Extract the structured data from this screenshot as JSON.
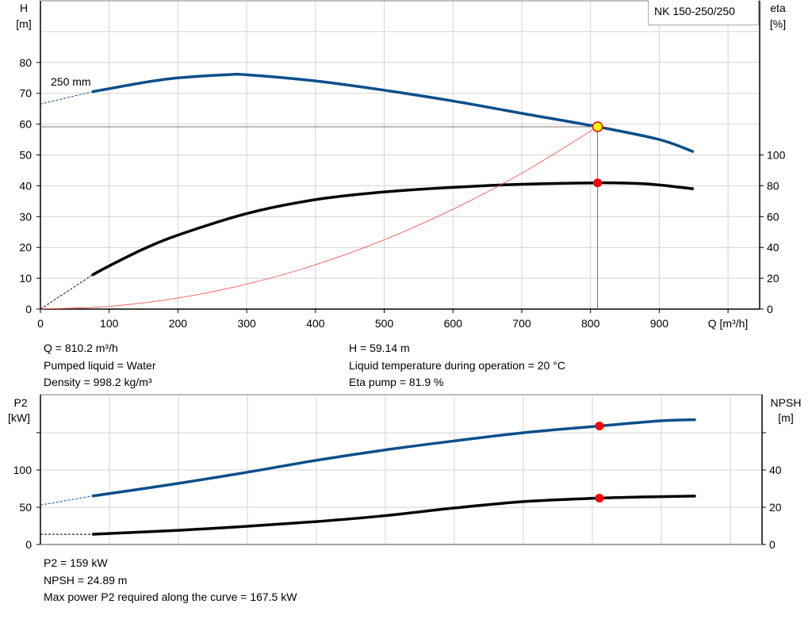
{
  "colors": {
    "head": "#0b4f8a",
    "eta": "#000000",
    "system": "#ff4040",
    "point_fill_head": "#ffff00",
    "point_marker": "#ff0000",
    "grid": "#d4d4d4"
  },
  "chart_data": [
    {
      "type": "line",
      "title": "NK 150-250/250",
      "xlabel": "Q [m³/h]",
      "ylabel": "H [m]",
      "ylabel_top": "H",
      "ylabel_unit": "[m]",
      "y2label_top": "eta",
      "y2label_unit": "[%]",
      "xlim": [
        0,
        1046
      ],
      "ylim": [
        0,
        100
      ],
      "y2lim": [
        0,
        200
      ],
      "grid": true,
      "legend": "top-right",
      "x_ticks": [
        0,
        100,
        200,
        300,
        400,
        500,
        600,
        700,
        800,
        900
      ],
      "y_ticks": [
        0,
        10,
        20,
        30,
        40,
        50,
        60,
        70,
        80
      ],
      "y2_ticks": [
        0,
        20,
        40,
        60,
        80,
        100
      ],
      "curve_label": "250 mm",
      "series": [
        {
          "key": "head",
          "axis": "y",
          "color": "#0b4f8a",
          "x": [
            75,
            100,
            150,
            200,
            270,
            300,
            400,
            500,
            600,
            700,
            810.2,
            900,
            950
          ],
          "values": [
            70.5,
            71.5,
            73.5,
            75,
            76,
            76,
            74,
            71,
            67.5,
            63.5,
            59.14,
            55,
            51
          ],
          "extrapolated": {
            "x": [
              0,
              75
            ],
            "values": [
              66.5,
              70.5
            ]
          }
        },
        {
          "key": "eta",
          "axis": "y2",
          "color": "#000000",
          "x": [
            75,
            100,
            150,
            200,
            300,
            400,
            500,
            600,
            700,
            810.2,
            870,
            900,
            950
          ],
          "values": [
            22,
            28,
            39,
            48,
            62,
            71,
            76,
            79,
            81,
            81.9,
            81.5,
            80.5,
            78
          ],
          "extrapolated": {
            "x": [
              0,
              75
            ],
            "values": [
              0,
              22
            ]
          }
        },
        {
          "key": "system",
          "axis": "y",
          "color": "#ff4040",
          "x": [
            0,
            100,
            200,
            300,
            400,
            500,
            600,
            700,
            810.2
          ],
          "values": [
            0,
            0.9,
            3.6,
            8.1,
            14.4,
            22.5,
            32.4,
            44.1,
            59.14
          ]
        }
      ],
      "duty_point": {
        "Q": 810.2,
        "H": 59.14,
        "eta": 81.9
      }
    },
    {
      "type": "line",
      "ylabel_top": "P2",
      "ylabel_unit": "[kW]",
      "y2label_top": "NPSH",
      "y2label_unit": "[m]",
      "xlim": [
        0,
        1046
      ],
      "ylim": [
        0,
        201
      ],
      "y2lim": [
        0,
        80.4
      ],
      "grid": true,
      "y_ticks": [
        0,
        50,
        100,
        150
      ],
      "y_tick_labels": [
        "0",
        "50",
        "100",
        ""
      ],
      "y2_ticks": [
        0,
        20,
        40,
        60
      ],
      "y2_tick_labels": [
        "0",
        "20",
        "40",
        ""
      ],
      "series": [
        {
          "key": "p2",
          "axis": "y",
          "color": "#0b4f8a",
          "x": [
            75,
            200,
            300,
            400,
            500,
            600,
            700,
            810.2,
            900,
            950
          ],
          "values": [
            65,
            82,
            97,
            113,
            127,
            139,
            150,
            159,
            166,
            167.5
          ],
          "extrapolated": {
            "x": [
              0,
              75
            ],
            "values": [
              53,
              65
            ]
          }
        },
        {
          "key": "npsh",
          "axis": "y2",
          "color": "#000000",
          "x": [
            75,
            200,
            300,
            400,
            500,
            600,
            700,
            810.2,
            900,
            950
          ],
          "values": [
            5.5,
            7.6,
            9.8,
            12.3,
            15.5,
            19.6,
            23,
            24.89,
            25.7,
            26
          ],
          "extrapolated": {
            "x": [
              0,
              75
            ],
            "values": [
              5.5,
              5.5
            ]
          }
        }
      ],
      "duty_point": {
        "Q": 810.2,
        "P2": 159,
        "NPSH": 24.89
      }
    }
  ],
  "info_top": {
    "q": "Q = 810.2 m³/h",
    "liquid": "Pumped liquid = Water",
    "density": "Density = 998.2 kg/m³",
    "h": "H = 59.14 m",
    "temp": "Liquid temperature during operation = 20 °C",
    "eta": "Eta pump = 81.9 %"
  },
  "info_bottom": {
    "p2": "P2 = 159 kW",
    "npsh": "NPSH = 24.89 m",
    "maxp2": "Max power P2 required along the curve = 167.5 kW"
  }
}
